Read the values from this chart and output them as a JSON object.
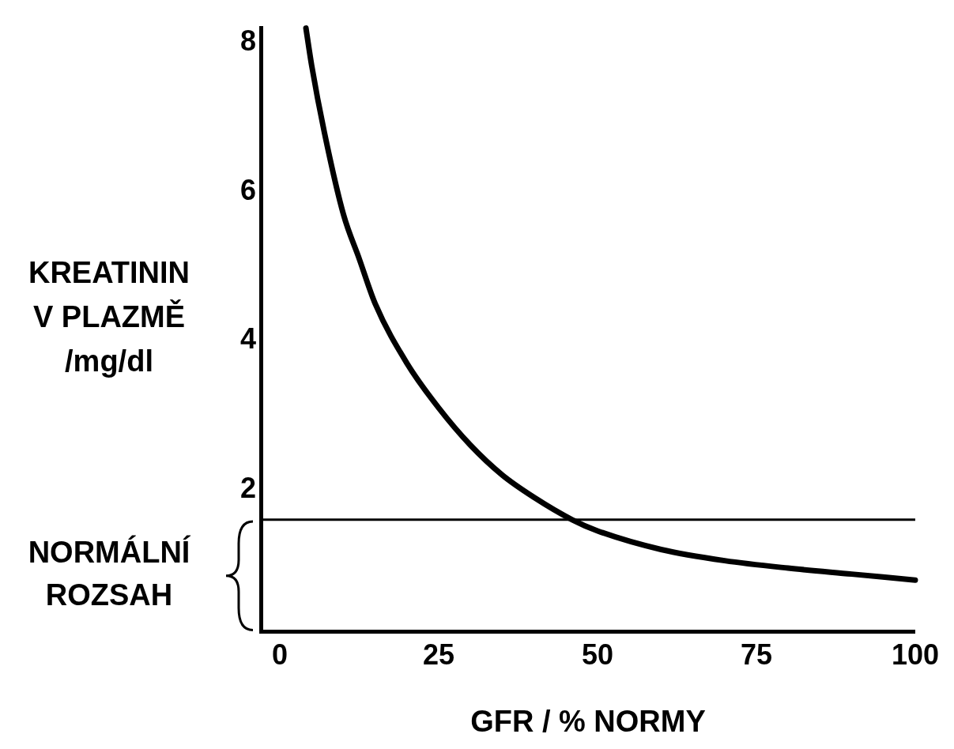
{
  "chart_data": {
    "type": "line",
    "xlabel": "GFR / % NORMY",
    "ylabel": "KREATININ\nV PLAZMĚ\n/mg/dl",
    "x": [
      4.1,
      5,
      7,
      10,
      12.5,
      15,
      20,
      25,
      30,
      35,
      40,
      46,
      50,
      60,
      70,
      80,
      90,
      100
    ],
    "series": [
      {
        "color": "#000000",
        "values": [
          8.2,
          7.7,
          6.8,
          5.7,
          5.1,
          4.5,
          3.7,
          3.1,
          2.6,
          2.2,
          1.9,
          1.6,
          1.45,
          1.2,
          1.05,
          0.95,
          0.87,
          0.79
        ]
      }
    ],
    "xlim": [
      -3,
      100
    ],
    "xticks": [
      0,
      25,
      50,
      75,
      100
    ],
    "ylim": [
      0.1,
      8.2
    ],
    "yticks": [
      2,
      4,
      6,
      8
    ],
    "ref_lines": [
      {
        "axis": "y",
        "value": 1.6,
        "color": "#000000"
      }
    ],
    "annotations": [
      "NORMÁLNÍ ROZSAH"
    ],
    "grid": false,
    "legend": false,
    "marker": "none",
    "line_style": "solid"
  }
}
